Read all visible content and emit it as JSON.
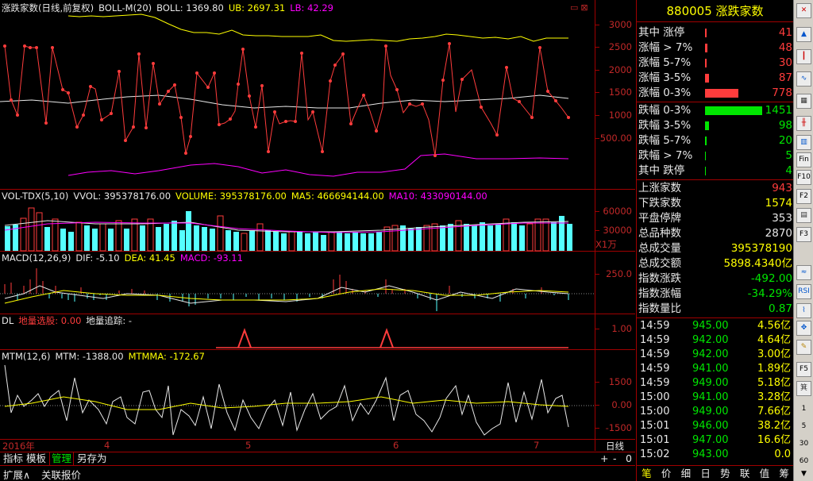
{
  "main_chart": {
    "title": "涨跌家数(日线,前复权)",
    "indicator": "BOLL-M(20)",
    "boll": "BOLL: 1369.80",
    "ub": "UB: 2697.31",
    "lb": "LB: 42.29",
    "yticks": [
      "3000",
      "2500",
      "2000",
      "1500",
      "1000",
      "500.00"
    ]
  },
  "vol_panel": {
    "title": "VOL-TDX(5,10)",
    "vvol": "VVOL: 395378176.00",
    "volume": "VOLUME: 395378176.00",
    "ma5": "MA5: 466694144.00",
    "ma10": "MA10: 433090144.00",
    "yticks": [
      "60000",
      "30000"
    ],
    "unit": "X1万"
  },
  "macd_panel": {
    "title": "MACD(12,26,9)",
    "dif": "DIF: -5.10",
    "dea": "DEA: 41.45",
    "macd": "MACD: -93.11",
    "yticks": [
      "250.0"
    ]
  },
  "dl_panel": {
    "title": "DL",
    "sel": "地量选股: 0.00",
    "track": "地量追踪: -",
    "yticks": [
      "1.00"
    ]
  },
  "mtm_panel": {
    "title": "MTM(12,6)",
    "mtm": "MTM: -1388.00",
    "mtmma": "MTMMA: -172.67",
    "yticks": [
      "1500",
      "0.00",
      "-1500"
    ]
  },
  "date_axis": {
    "labels": [
      "2016年",
      "4",
      "5",
      "6",
      "7"
    ],
    "period": "日线"
  },
  "bottom_tabs": [
    "指标",
    "模板",
    "管理",
    "另存为"
  ],
  "nav_buttons": [
    "+",
    "-",
    "0"
  ],
  "status_tabs": [
    "扩展∧",
    "关联报价"
  ],
  "right_panel": {
    "title": "880005 涨跌家数",
    "up_rows": [
      {
        "label": "其中 涨停",
        "value": "41"
      },
      {
        "label": "涨幅 > 7%",
        "value": "48"
      },
      {
        "label": "涨幅 5-7%",
        "value": "30"
      },
      {
        "label": "涨幅 3-5%",
        "value": "87"
      },
      {
        "label": "涨幅 0-3%",
        "value": "778"
      }
    ],
    "down_rows": [
      {
        "label": "跌幅 0-3%",
        "value": "1451"
      },
      {
        "label": "跌幅 3-5%",
        "value": "98"
      },
      {
        "label": "跌幅 5-7%",
        "value": "20"
      },
      {
        "label": "跌幅 > 7%",
        "value": "5"
      },
      {
        "label": "其中 跌停",
        "value": "4"
      }
    ],
    "stats": [
      {
        "label": "上涨家数",
        "value": "943"
      },
      {
        "label": "下跌家数",
        "value": "1574"
      },
      {
        "label": "平盘停牌",
        "value": "353"
      },
      {
        "label": "总品种数",
        "value": "2870"
      },
      {
        "label": "总成交量",
        "value": "395378190"
      },
      {
        "label": "总成交额",
        "value": "5898.4340亿"
      },
      {
        "label": "指数涨跌",
        "value": "-492.00"
      },
      {
        "label": "指数涨幅",
        "value": "-34.29%"
      },
      {
        "label": "指数量比",
        "value": "0.87"
      }
    ],
    "ticks": [
      {
        "time": "14:59",
        "price": "945.00",
        "vol": "4.56亿"
      },
      {
        "time": "14:59",
        "price": "942.00",
        "vol": "4.64亿"
      },
      {
        "time": "14:59",
        "price": "942.00",
        "vol": "3.00亿"
      },
      {
        "time": "14:59",
        "price": "941.00",
        "vol": "1.89亿"
      },
      {
        "time": "14:59",
        "price": "949.00",
        "vol": "5.18亿"
      },
      {
        "time": "15:00",
        "price": "941.00",
        "vol": "3.28亿"
      },
      {
        "time": "15:00",
        "price": "949.00",
        "vol": "7.66亿"
      },
      {
        "time": "15:01",
        "price": "946.00",
        "vol": "38.2亿"
      },
      {
        "time": "15:01",
        "price": "947.00",
        "vol": "16.6亿"
      },
      {
        "time": "15:02",
        "price": "943.00",
        "vol": "0.0"
      }
    ],
    "tabs": [
      "笔",
      "价",
      "细",
      "日",
      "势",
      "联",
      "值",
      "筹"
    ]
  },
  "toolbar_icons": [
    "close-icon",
    "up-arrow-icon",
    "candle-icon",
    "line-icon",
    "grid-icon",
    "fin-icon",
    "f10-icon",
    "f2-icon",
    "f3-icon",
    "wave-icon",
    "rsi-icon",
    "move-icon",
    "pen-icon",
    "f5-icon",
    "quant-icon",
    "digit-1",
    "digit-5",
    "digit-30",
    "digit-60",
    "dropdown-icon"
  ],
  "toolbar_labels": [
    "",
    "",
    "",
    "",
    "",
    "Fin",
    "F10",
    "F2",
    "F3",
    "",
    "RSI",
    "",
    "",
    "F5",
    "",
    "1",
    "5",
    "30",
    "60",
    "▼"
  ]
}
